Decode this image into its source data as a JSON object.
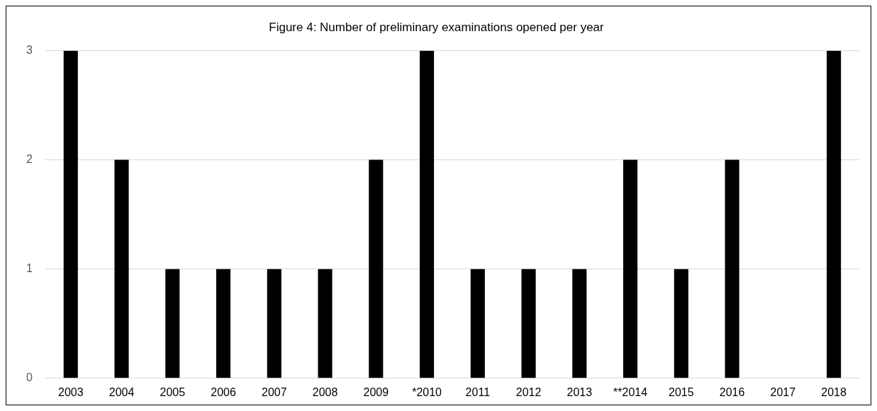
{
  "chart_data": {
    "type": "bar",
    "title": "Figure 4: Number of preliminary examinations opened per year",
    "categories": [
      "2003",
      "2004",
      "2005",
      "2006",
      "2007",
      "2008",
      "2009",
      "*2010",
      "2011",
      "2012",
      "2013",
      "**2014",
      "2015",
      "2016",
      "2017",
      "2018"
    ],
    "values": [
      3,
      2,
      1,
      1,
      1,
      1,
      2,
      3,
      1,
      1,
      1,
      2,
      1,
      2,
      0,
      3
    ],
    "color": "#000000",
    "ylim": [
      0,
      3
    ],
    "yticks": [
      0,
      1,
      2,
      3
    ],
    "grid": "y",
    "legend": false
  }
}
